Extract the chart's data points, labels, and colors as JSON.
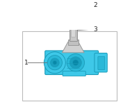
{
  "background_color": "#ffffff",
  "border_color": "#bbbbbb",
  "label_1": "1",
  "label_2": "2",
  "label_3": "3",
  "label_fontsize": 6.5,
  "label_color": "#222222",
  "line_color": "#666666",
  "body_color": "#3ec8e8",
  "body_edge": "#1a9ab8",
  "stem_color": "#c8c8c8",
  "stem_edge": "#888888",
  "cap_color": "#d0d0d0",
  "cap_edge": "#888888",
  "mount_color": "#d0d0d0",
  "mount_edge": "#999999"
}
